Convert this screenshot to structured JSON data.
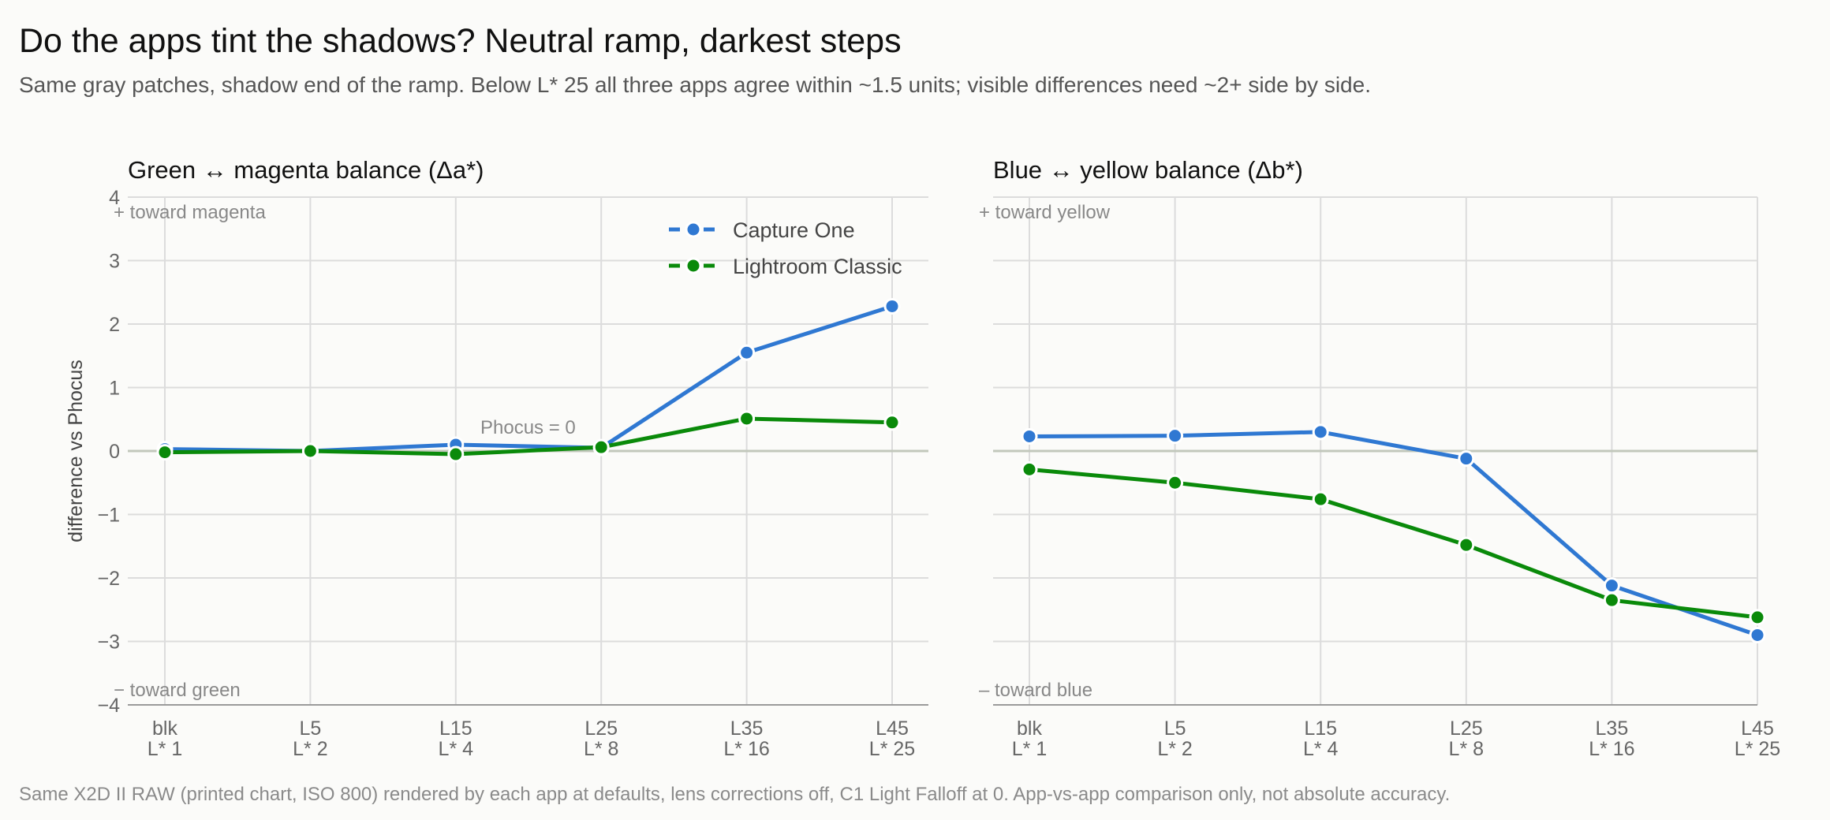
{
  "header": {
    "title": "Do the apps tint the shadows? Neutral ramp, darkest steps",
    "subtitle": "Same gray patches, shadow end of the ramp. Below L* 25 all three apps agree within ~1.5 units; visible differences need ~2+ side by side."
  },
  "footer": "Same X2D II RAW (printed chart, ISO 800) rendered by each app at defaults, lens corrections off, C1 Light Falloff at 0. App-vs-app comparison only, not absolute accuracy.",
  "colors": {
    "capture_one": "#2f78d2",
    "lightroom": "#0a8a0a",
    "zero_line": "#c2c8bc",
    "grid": "#dcdcdc"
  },
  "chart_data": [
    {
      "type": "line",
      "title": "Green ↔ magenta balance (Δa*)",
      "ylabel": "difference vs Phocus",
      "ylim": [
        -4,
        4
      ],
      "yticks": [
        4,
        3,
        2,
        1,
        0,
        -1,
        -2,
        -3,
        -4
      ],
      "ytick_labels": [
        "4",
        "3",
        "2",
        "1",
        "0",
        "−1",
        "−2",
        "−3",
        "−4"
      ],
      "categories": [
        {
          "top": "blk",
          "bottom": "L* 1"
        },
        {
          "top": "L5",
          "bottom": "L* 2"
        },
        {
          "top": "L15",
          "bottom": "L* 4"
        },
        {
          "top": "L25",
          "bottom": "L* 8"
        },
        {
          "top": "L35",
          "bottom": "L* 16"
        },
        {
          "top": "L45",
          "bottom": "L* 25"
        }
      ],
      "series": [
        {
          "name": "Capture One",
          "values": [
            0.03,
            0.0,
            0.1,
            0.05,
            1.55,
            2.28
          ]
        },
        {
          "name": "Lightroom Classic",
          "values": [
            -0.02,
            0.0,
            -0.05,
            0.06,
            0.51,
            0.45
          ]
        }
      ],
      "annotations": {
        "top": "+ toward magenta",
        "bottom": "− toward green",
        "zero": "Phocus = 0"
      },
      "legend": "top-right",
      "grid": true
    },
    {
      "type": "line",
      "title": "Blue ↔ yellow balance (Δb*)",
      "ylim": [
        -4,
        4
      ],
      "categories": [
        {
          "top": "blk",
          "bottom": "L* 1"
        },
        {
          "top": "L5",
          "bottom": "L* 2"
        },
        {
          "top": "L15",
          "bottom": "L* 4"
        },
        {
          "top": "L25",
          "bottom": "L* 8"
        },
        {
          "top": "L35",
          "bottom": "L* 16"
        },
        {
          "top": "L45",
          "bottom": "L* 25"
        }
      ],
      "series": [
        {
          "name": "Capture One",
          "values": [
            0.23,
            0.24,
            0.3,
            -0.12,
            -2.12,
            -2.9
          ]
        },
        {
          "name": "Lightroom Classic",
          "values": [
            -0.29,
            -0.5,
            -0.76,
            -1.48,
            -2.35,
            -2.62
          ]
        }
      ],
      "annotations": {
        "top": "+ toward yellow",
        "bottom": "– toward blue"
      },
      "grid": true
    }
  ]
}
